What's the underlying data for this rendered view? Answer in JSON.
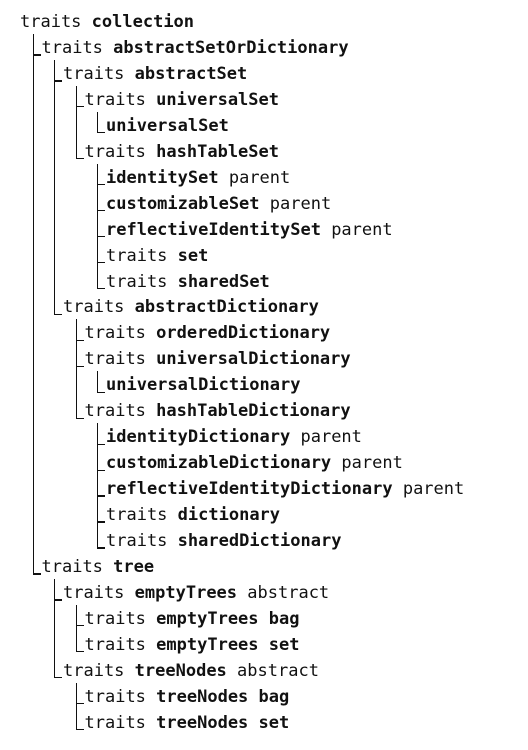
{
  "nodes": [
    {
      "kw": "traits",
      "name": "collection",
      "suffix": ""
    },
    {
      "kw": "traits",
      "name": "abstractSetOrDictionary",
      "suffix": ""
    },
    {
      "kw": "traits",
      "name": "abstractSet",
      "suffix": ""
    },
    {
      "kw": "traits",
      "name": "universalSet",
      "suffix": ""
    },
    {
      "kw": "",
      "name": "universalSet",
      "suffix": ""
    },
    {
      "kw": "traits",
      "name": "hashTableSet",
      "suffix": ""
    },
    {
      "kw": "",
      "name": "identitySet",
      "suffix": "parent"
    },
    {
      "kw": "",
      "name": "customizableSet",
      "suffix": "parent"
    },
    {
      "kw": "",
      "name": "reflectiveIdentitySet",
      "suffix": "parent"
    },
    {
      "kw": "traits",
      "name": "set",
      "suffix": ""
    },
    {
      "kw": "traits",
      "name": "sharedSet",
      "suffix": ""
    },
    {
      "kw": "traits",
      "name": "abstractDictionary",
      "suffix": ""
    },
    {
      "kw": "traits",
      "name": "orderedDictionary",
      "suffix": ""
    },
    {
      "kw": "traits",
      "name": "universalDictionary",
      "suffix": ""
    },
    {
      "kw": "",
      "name": "universalDictionary",
      "suffix": ""
    },
    {
      "kw": "traits",
      "name": "hashTableDictionary",
      "suffix": ""
    },
    {
      "kw": "",
      "name": "identityDictionary",
      "suffix": "parent"
    },
    {
      "kw": "",
      "name": "customizableDictionary",
      "suffix": "parent"
    },
    {
      "kw": "",
      "name": "reflectiveIdentityDictionary",
      "suffix": "parent"
    },
    {
      "kw": "traits",
      "name": "dictionary",
      "suffix": ""
    },
    {
      "kw": "traits",
      "name": "sharedDictionary",
      "suffix": ""
    },
    {
      "kw": "traits",
      "name": "tree",
      "suffix": ""
    },
    {
      "kw": "traits",
      "name": "emptyTrees",
      "suffix": "abstract"
    },
    {
      "kw": "traits",
      "name": "emptyTrees bag",
      "suffix": ""
    },
    {
      "kw": "traits",
      "name": "emptyTrees set",
      "suffix": ""
    },
    {
      "kw": "traits",
      "name": "treeNodes",
      "suffix": "abstract"
    },
    {
      "kw": "traits",
      "name": "treeNodes bag",
      "suffix": ""
    },
    {
      "kw": "traits",
      "name": "treeNodes set",
      "suffix": ""
    }
  ]
}
